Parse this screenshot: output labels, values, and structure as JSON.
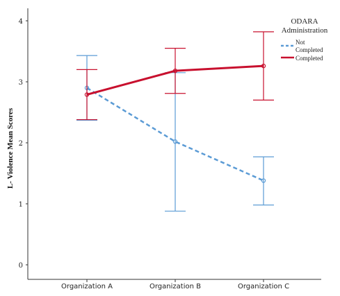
{
  "chart_data": {
    "type": "line",
    "title": "",
    "xlabel": "",
    "ylabel": "L- Violence Mean Scores",
    "ylim": [
      0,
      4
    ],
    "yticks": [
      "0",
      "1",
      "2",
      "3",
      "4"
    ],
    "grid": false,
    "categories": [
      "Organization A",
      "Organization B",
      "Organization C"
    ],
    "legend": {
      "title_line1": "ODARA",
      "title_line2": "Administration",
      "position": "top-right"
    },
    "series": [
      {
        "name_line1": "Not",
        "name_line2": "Completed",
        "color": "#5b9bd5",
        "line_style": "dashed",
        "values": [
          2.9,
          2.02,
          1.38
        ],
        "error_low": [
          2.37,
          0.88,
          0.98
        ],
        "error_high": [
          3.43,
          3.15,
          1.77
        ]
      },
      {
        "name": "Completed",
        "color": "#c8102e",
        "line_style": "solid",
        "values": [
          2.79,
          3.18,
          3.26
        ],
        "error_low": [
          2.38,
          2.81,
          2.7
        ],
        "error_high": [
          3.2,
          3.55,
          3.82
        ]
      }
    ]
  }
}
